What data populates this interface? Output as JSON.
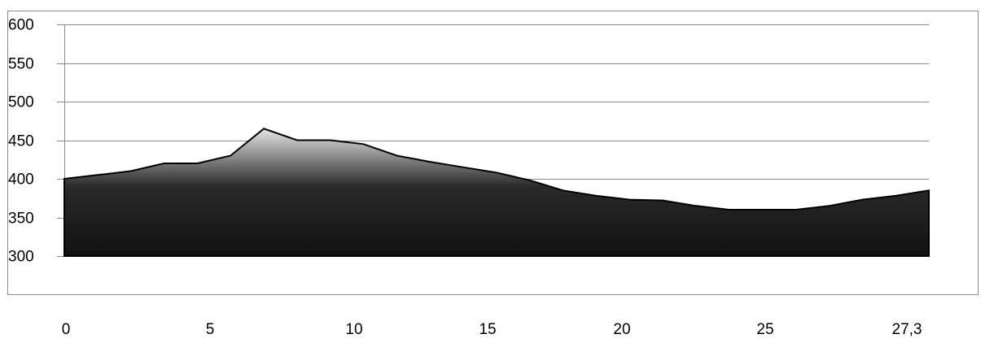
{
  "chart_data": {
    "type": "area",
    "title": "",
    "xlabel": "",
    "ylabel": "",
    "ylim": [
      300,
      600
    ],
    "yticks": [
      "600",
      "550",
      "500",
      "450",
      "400",
      "350",
      "300"
    ],
    "xticks": [
      "0",
      "5",
      "10",
      "15",
      "20",
      "25",
      "27,3"
    ],
    "grid": true,
    "series": [
      {
        "values": [
          400,
          405,
          410,
          420,
          420,
          430,
          465,
          450,
          450,
          445,
          430,
          422,
          415,
          408,
          398,
          385,
          378,
          373,
          372,
          365,
          360,
          360,
          360,
          365,
          373,
          378,
          385
        ]
      }
    ],
    "colors": {
      "fill_top": "#e6e6e6",
      "fill_mid": "#2a2a2a",
      "fill_bottom": "#111111",
      "line": "#000000",
      "grid": "#8c8c8c"
    }
  }
}
